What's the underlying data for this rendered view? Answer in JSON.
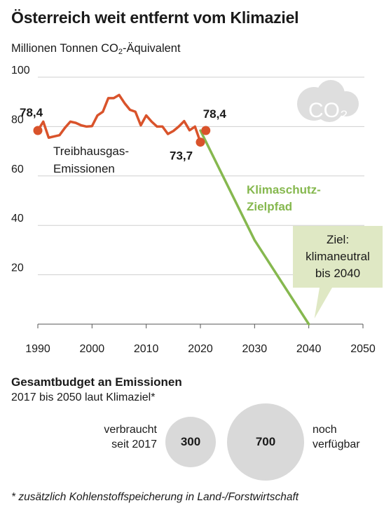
{
  "header": {
    "title": "Österreich weit entfernt vom Klimaziel",
    "subtitle_main": "Millionen Tonnen CO",
    "subtitle_sub": "2",
    "subtitle_rest": "-Äquivalent"
  },
  "chart_data": {
    "type": "line",
    "xlim": [
      1990,
      2050
    ],
    "ylim": [
      0,
      100
    ],
    "x_ticks": [
      "1990",
      "2000",
      "2010",
      "2020",
      "2030",
      "2040",
      "2050"
    ],
    "y_ticks": [
      "100",
      "80",
      "60",
      "40",
      "20"
    ],
    "grid": true,
    "series": [
      {
        "name": "Treibhausgas-Emissionen",
        "label_lines": [
          "Treibhausgas-",
          "Emissionen"
        ],
        "color": "#d9532b",
        "x": [
          1990,
          1991,
          1992,
          1993,
          1994,
          1995,
          1996,
          1997,
          1998,
          1999,
          2000,
          2001,
          2002,
          2003,
          2004,
          2005,
          2006,
          2007,
          2008,
          2009,
          2010,
          2011,
          2012,
          2013,
          2014,
          2015,
          2016,
          2017,
          2018,
          2019,
          2020
        ],
        "y": [
          78.4,
          82,
          75.5,
          76,
          76.5,
          79.5,
          82,
          81.5,
          80.5,
          80,
          80.2,
          84.5,
          86,
          91.5,
          91.5,
          92.8,
          89.5,
          86.8,
          86,
          80.5,
          84.5,
          82,
          80,
          80,
          77,
          78.2,
          80,
          82.2,
          78.5,
          80,
          73.7
        ]
      },
      {
        "name": "Klimaschutz-Zielpfad",
        "label_lines": [
          "Klimaschutz-",
          "Zielpfad"
        ],
        "color": "#86b84f",
        "x": [
          2020,
          2030,
          2040
        ],
        "y": [
          78.4,
          34,
          0
        ]
      }
    ],
    "points": [
      {
        "x": 1990,
        "y": 78.4,
        "label": "78,4"
      },
      {
        "x": 2020,
        "y": 73.7,
        "label": "73,7"
      },
      {
        "x": 2021,
        "y": 78.4,
        "label": "78,4"
      }
    ],
    "annotation": {
      "target_x": 2040,
      "target_y": 0,
      "lines": [
        "Ziel:",
        "klimaneutral",
        "bis 2040"
      ]
    },
    "icon_label": "CO₂",
    "icon_name": "cloud-icon"
  },
  "budget": {
    "title": "Gesamtbudget an Emissionen",
    "subtitle": "2017 bis 2050 laut Klimaziel*",
    "used_label_lines": [
      "verbraucht",
      "seit 2017"
    ],
    "used_value": "300",
    "left_label_lines": [
      "noch",
      "verfügbar"
    ],
    "left_value": "700"
  },
  "footnote": "* zusätzlich Kohlenstoffspeicherung in Land-/Forstwirtschaft"
}
